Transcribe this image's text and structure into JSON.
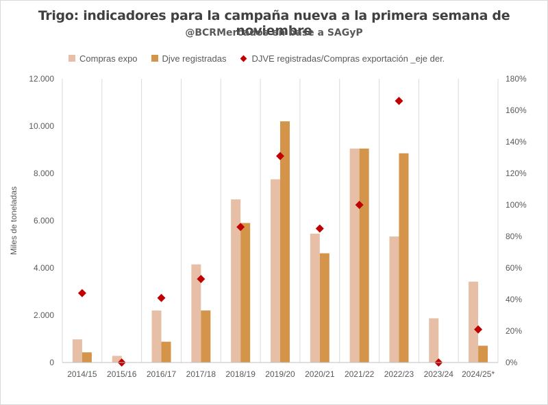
{
  "chart_data": {
    "type": "bar",
    "title": "Trigo: indicadores para la campaña nueva a la primera semana de noviembre",
    "subtitle": "@BCRMercados en base a SAGyP",
    "ylabel": "Miles de toneladas",
    "categories": [
      "2014/15",
      "2015/16",
      "2016/17",
      "2017/18",
      "2018/19",
      "2019/20",
      "2020/21",
      "2021/22",
      "2022/23",
      "2023/24",
      "2024/25*"
    ],
    "series": [
      {
        "name": "Compras expo",
        "kind": "bar",
        "axis": "left",
        "color": "#e6bfa6",
        "values": [
          980,
          280,
          2200,
          4150,
          6900,
          7750,
          5450,
          9050,
          5330,
          1870,
          3420
        ]
      },
      {
        "name": "Djve registradas",
        "kind": "bar",
        "axis": "left",
        "color": "#d4954a",
        "values": [
          430,
          0,
          880,
          2200,
          5900,
          10200,
          4620,
          9050,
          8850,
          0,
          710
        ]
      },
      {
        "name": "DJVE registradas/Compras exportación _eje der.",
        "kind": "scatter",
        "axis": "right",
        "color": "#c00000",
        "values": [
          0.44,
          0.0,
          0.41,
          0.53,
          0.86,
          1.31,
          0.85,
          1.0,
          1.66,
          0.0,
          0.21
        ]
      }
    ],
    "y_left": {
      "min": 0,
      "max": 12000,
      "ticks": [
        "0",
        "2.000",
        "4.000",
        "6.000",
        "8.000",
        "10.000",
        "12.000"
      ]
    },
    "y_right": {
      "min": 0,
      "max": 1.8,
      "ticks": [
        "0%",
        "20%",
        "40%",
        "60%",
        "80%",
        "100%",
        "120%",
        "140%",
        "160%",
        "180%"
      ]
    },
    "grid": "vertical",
    "legend_position": "top"
  }
}
